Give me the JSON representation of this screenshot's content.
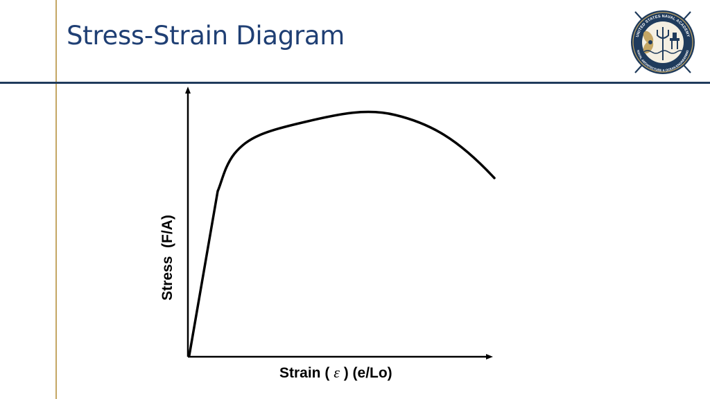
{
  "slide": {
    "title": "Stress-Strain Diagram"
  },
  "logo": {
    "icon": "naval-academy-seal-icon",
    "ring_text_top": "UNITED STATES NAVAL ACADEMY",
    "ring_text_bottom": "NAVAL ARCHITECTURE & OCEAN ENGINEERING"
  },
  "diagram": {
    "y_axis_label": "Stress  (F/A)",
    "x_axis_label_prefix": "Strain ( ",
    "x_axis_symbol": "ε",
    "x_axis_label_suffix": " ) (e/Lo)"
  },
  "colors": {
    "title": "#1f3f74",
    "navy_rule": "#1f3b5c",
    "gold_rule": "#c4a664",
    "curve": "#000000"
  }
}
